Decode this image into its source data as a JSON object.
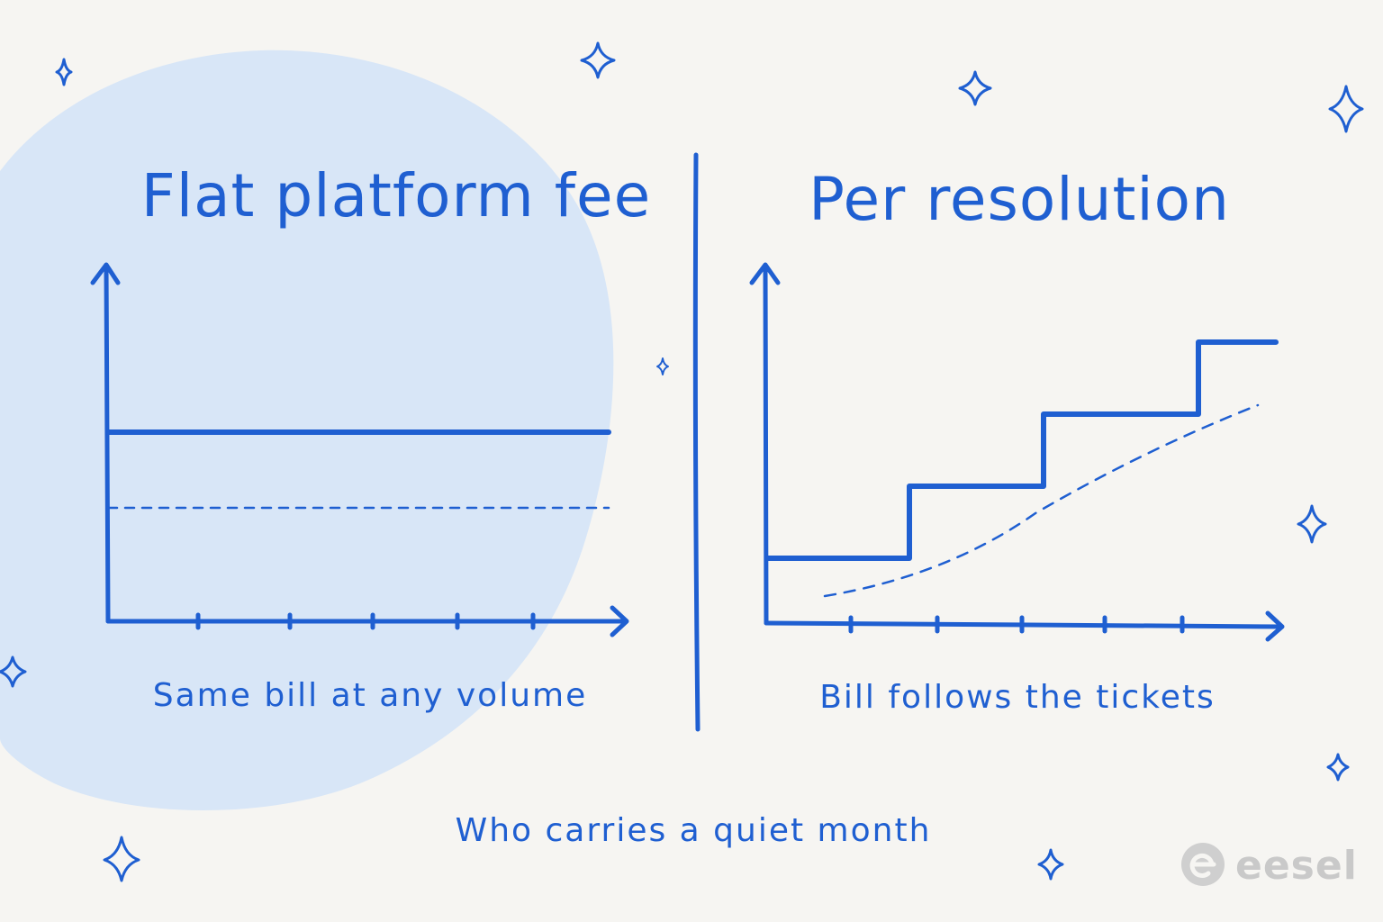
{
  "colors": {
    "background": "#f6f5f2",
    "ink": "#1f5fd1",
    "blob": "#d8e6f7",
    "logo": "#c9c9c9"
  },
  "left_panel": {
    "title": "Flat platform fee",
    "caption": "Same bill at any volume"
  },
  "right_panel": {
    "title": "Per resolution",
    "caption": "Bill follows the tickets"
  },
  "footer": {
    "caption": "Who carries a quiet month"
  },
  "logo": {
    "text": "eesel",
    "icon": "eesel-logo-icon"
  },
  "icons": [
    "sparkle-icon"
  ],
  "chart_data": [
    {
      "type": "line",
      "title": "Flat platform fee",
      "xlabel": "",
      "ylabel": "",
      "x_ticks": 5,
      "series": [
        {
          "style": "solid",
          "shape": "flat",
          "y": [
            1.0,
            1.0
          ]
        },
        {
          "style": "dashed",
          "shape": "flat",
          "y": [
            0.6,
            0.6
          ]
        }
      ]
    },
    {
      "type": "line",
      "title": "Per resolution",
      "xlabel": "",
      "ylabel": "",
      "x_ticks": 5,
      "series": [
        {
          "style": "solid",
          "shape": "step",
          "y": [
            1,
            2,
            3,
            4
          ]
        },
        {
          "style": "dashed",
          "shape": "rising-curve"
        }
      ]
    }
  ]
}
